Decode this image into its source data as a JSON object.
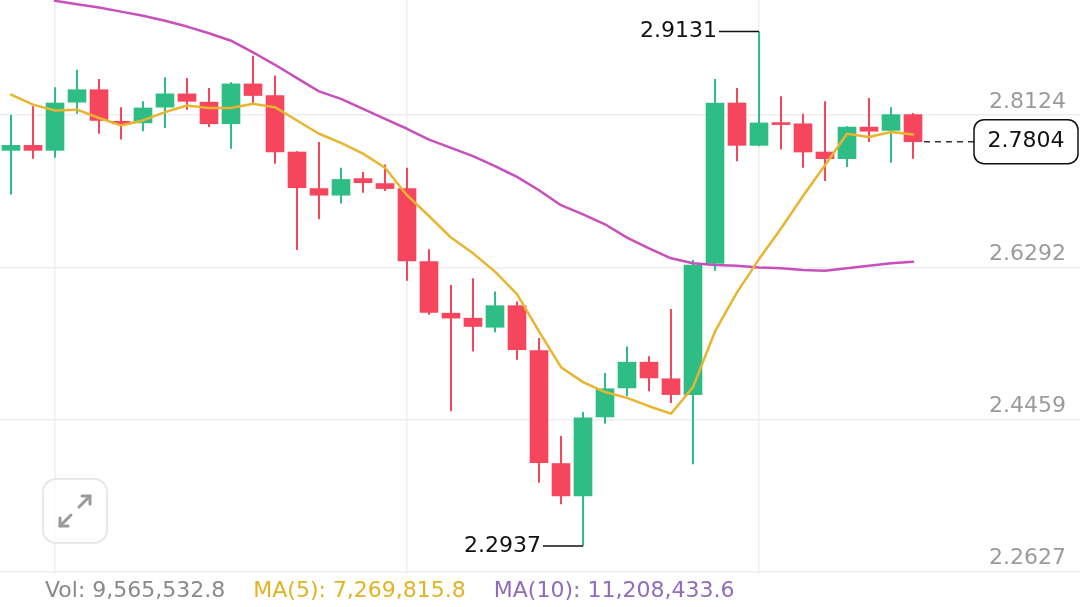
{
  "chart_data": {
    "type": "candlestick",
    "categories": [
      null,
      null,
      null,
      null,
      null,
      null,
      null,
      null,
      null,
      null,
      null,
      null,
      null,
      null,
      null,
      null,
      null,
      null,
      null,
      null,
      null,
      null,
      null,
      null,
      null,
      null,
      null,
      null,
      null,
      null,
      null,
      null,
      null,
      null,
      null,
      null,
      null,
      null,
      null,
      null,
      null,
      null
    ],
    "ohlc": [
      [
        2.77,
        2.813,
        2.717,
        2.776
      ],
      [
        2.776,
        2.823,
        2.76,
        2.77
      ],
      [
        2.77,
        2.846,
        2.761,
        2.827
      ],
      [
        2.828,
        2.867,
        2.814,
        2.843
      ],
      [
        2.843,
        2.856,
        2.79,
        2.806
      ],
      [
        2.805,
        2.822,
        2.783,
        2.802
      ],
      [
        2.803,
        2.829,
        2.793,
        2.821
      ],
      [
        2.822,
        2.858,
        2.797,
        2.838
      ],
      [
        2.838,
        2.857,
        2.819,
        2.829
      ],
      [
        2.828,
        2.845,
        2.798,
        2.802
      ],
      [
        2.802,
        2.852,
        2.772,
        2.85
      ],
      [
        2.85,
        2.884,
        2.826,
        2.836
      ],
      [
        2.836,
        2.86,
        2.754,
        2.768
      ],
      [
        2.768,
        2.769,
        2.65,
        2.725
      ],
      [
        2.724,
        2.78,
        2.687,
        2.716
      ],
      [
        2.716,
        2.749,
        2.706,
        2.735
      ],
      [
        2.736,
        2.744,
        2.719,
        2.731
      ],
      [
        2.73,
        2.753,
        2.721,
        2.724
      ],
      [
        2.724,
        2.749,
        2.613,
        2.637
      ],
      [
        2.636,
        2.651,
        2.572,
        2.575
      ],
      [
        2.574,
        2.608,
        2.456,
        2.568
      ],
      [
        2.568,
        2.616,
        2.528,
        2.558
      ],
      [
        2.557,
        2.6,
        2.551,
        2.583
      ],
      [
        2.583,
        2.588,
        2.518,
        2.53
      ],
      [
        2.529,
        2.544,
        2.37,
        2.394
      ],
      [
        2.393,
        2.426,
        2.344,
        2.354
      ],
      [
        2.354,
        2.455,
        2.2937,
        2.448
      ],
      [
        2.449,
        2.502,
        2.441,
        2.483
      ],
      [
        2.484,
        2.534,
        2.474,
        2.515
      ],
      [
        2.515,
        2.522,
        2.48,
        2.496
      ],
      [
        2.495,
        2.579,
        2.466,
        2.476
      ],
      [
        2.476,
        2.638,
        2.392,
        2.632
      ],
      [
        2.634,
        2.856,
        2.625,
        2.827
      ],
      [
        2.827,
        2.845,
        2.757,
        2.776
      ],
      [
        2.776,
        2.9131,
        2.775,
        2.803
      ],
      [
        2.803,
        2.835,
        2.771,
        2.801
      ],
      [
        2.802,
        2.814,
        2.749,
        2.768
      ],
      [
        2.768,
        2.829,
        2.733,
        2.76
      ],
      [
        2.76,
        2.799,
        2.75,
        2.798
      ],
      [
        2.798,
        2.833,
        2.78,
        2.793
      ],
      [
        2.794,
        2.822,
        2.755,
        2.813
      ],
      [
        2.813,
        2.815,
        2.76,
        2.7804
      ]
    ],
    "colors": [
      "#2ebd85",
      "#f6465d",
      "#2ebd85",
      "#2ebd85",
      "#f6465d",
      "#f6465d",
      "#2ebd85",
      "#2ebd85",
      "#f6465d",
      "#f6465d",
      "#2ebd85",
      "#f6465d",
      "#f6465d",
      "#f6465d",
      "#f6465d",
      "#2ebd85",
      "#f6465d",
      "#f6465d",
      "#f6465d",
      "#f6465d",
      "#f6465d",
      "#f6465d",
      "#2ebd85",
      "#f6465d",
      "#f6465d",
      "#f6465d",
      "#2ebd85",
      "#2ebd85",
      "#2ebd85",
      "#f6465d",
      "#f6465d",
      "#2ebd85",
      "#2ebd85",
      "#f6465d",
      "#2ebd85",
      "#f6465d",
      "#f6465d",
      "#f6465d",
      "#2ebd85",
      "#f6465d",
      "#2ebd85",
      "#f6465d"
    ],
    "series": [
      {
        "type": "line",
        "color": "#e9b52f",
        "values": [
          2.837,
          2.825,
          2.818,
          2.819,
          2.809,
          2.8,
          2.806,
          2.816,
          2.824,
          2.821,
          2.821,
          2.826,
          2.822,
          2.806,
          2.79,
          2.779,
          2.766,
          2.749,
          2.716,
          2.691,
          2.665,
          2.646,
          2.624,
          2.597,
          2.552,
          2.509,
          2.491,
          2.479,
          2.472,
          2.462,
          2.453,
          2.485,
          2.552,
          2.599,
          2.639,
          2.676,
          2.715,
          2.752,
          2.79,
          2.786,
          2.792,
          2.789
        ]
      },
      {
        "type": "line",
        "color": "#c750bd",
        "values": [
          null,
          null,
          2.95,
          2.946,
          2.942,
          2.937,
          2.932,
          2.926,
          2.919,
          2.911,
          2.902,
          2.888,
          2.873,
          2.857,
          2.841,
          2.832,
          2.82,
          2.808,
          2.796,
          2.783,
          2.773,
          2.763,
          2.751,
          2.738,
          2.722,
          2.704,
          2.693,
          2.681,
          2.665,
          2.652,
          2.64,
          2.634,
          2.632,
          2.631,
          2.629,
          2.628,
          2.626,
          2.625,
          2.628,
          2.631,
          2.634,
          2.636
        ]
      }
    ],
    "ylim": [
      2.26,
      2.951
    ],
    "yticks": [
      2.2627,
      2.4459,
      2.6292,
      2.8124
    ],
    "grid": true,
    "ref_lines": [
      {
        "axis": "y",
        "value": 2.7804,
        "label": "2.7804",
        "line_style": "dashed",
        "color": "#333333"
      }
    ],
    "annotations": [
      "2.9131",
      "2.2937",
      "Vol: 9,565,532.8",
      "MA(5): 7,269,815.8",
      "MA(10): 11,208,433.6"
    ]
  }
}
